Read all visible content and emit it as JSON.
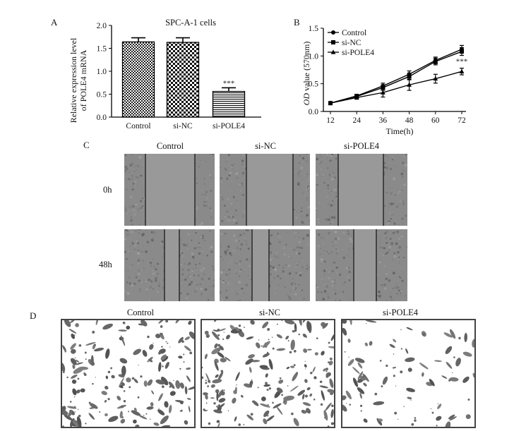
{
  "panels": {
    "a": "A",
    "b": "B",
    "c": "C",
    "d": "D"
  },
  "colors": {
    "bar_edge": "#000",
    "cell": "#666",
    "wound_bg": "#8c8c8c"
  },
  "chart_data": [
    {
      "type": "bar",
      "title": "SPC-A-1 cells",
      "ylabel_line1": "Relative expression level",
      "ylabel_line2": "of POLE4 mRNA",
      "categories": [
        "Control",
        "si-NC",
        "si-POLE4"
      ],
      "values": [
        1.64,
        1.63,
        0.56
      ],
      "errors": [
        0.09,
        0.1,
        0.08
      ],
      "ylim": [
        0,
        2.0
      ],
      "yticks": [
        "0.0",
        "0.5",
        "1.0",
        "1.5",
        "2.0"
      ],
      "significance": [
        "",
        "",
        "***"
      ]
    },
    {
      "type": "line",
      "xlabel": "Time(h)",
      "ylabel_italic": "OD",
      "ylabel_rest": " value (570nm)",
      "x": [
        12,
        24,
        36,
        48,
        60,
        72
      ],
      "xticks": [
        "12",
        "24",
        "36",
        "48",
        "60",
        "72"
      ],
      "ylim": [
        0,
        1.5
      ],
      "yticks": [
        "0.0",
        "0.5",
        "1.0",
        "1.5"
      ],
      "series": [
        {
          "name": "Control",
          "marker": "circle",
          "values": [
            0.15,
            0.28,
            0.46,
            0.67,
            0.92,
            1.12
          ],
          "errors": [
            0.02,
            0.03,
            0.05,
            0.06,
            0.06,
            0.07
          ]
        },
        {
          "name": "si-NC",
          "marker": "square",
          "values": [
            0.15,
            0.27,
            0.43,
            0.63,
            0.9,
            1.08
          ],
          "errors": [
            0.02,
            0.03,
            0.05,
            0.06,
            0.06,
            0.07
          ]
        },
        {
          "name": "si-POLE4",
          "marker": "triangle",
          "values": [
            0.15,
            0.25,
            0.34,
            0.48,
            0.59,
            0.72
          ],
          "errors": [
            0.02,
            0.03,
            0.08,
            0.1,
            0.08,
            0.06
          ]
        }
      ],
      "annotation": "***"
    }
  ],
  "wound": {
    "columns": [
      "Control",
      "si-NC",
      "si-POLE4"
    ],
    "rows": [
      "0h",
      "48h"
    ]
  },
  "transwell": {
    "columns": [
      "Control",
      "si-NC",
      "si-POLE4"
    ]
  }
}
